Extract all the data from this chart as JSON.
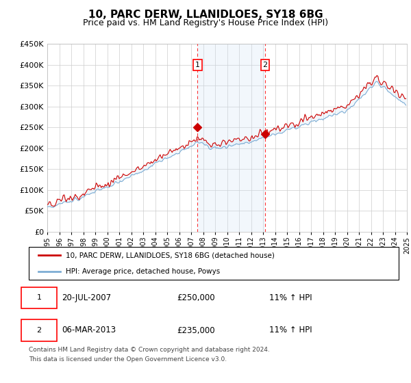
{
  "title": "10, PARC DERW, LLANIDLOES, SY18 6BG",
  "subtitle": "Price paid vs. HM Land Registry's House Price Index (HPI)",
  "legend_line1": "10, PARC DERW, LLANIDLOES, SY18 6BG (detached house)",
  "legend_line2": "HPI: Average price, detached house, Powys",
  "footnote1": "Contains HM Land Registry data © Crown copyright and database right 2024.",
  "footnote2": "This data is licensed under the Open Government Licence v3.0.",
  "sale1_date": "20-JUL-2007",
  "sale1_price": "£250,000",
  "sale1_hpi": "11% ↑ HPI",
  "sale2_date": "06-MAR-2013",
  "sale2_price": "£235,000",
  "sale2_hpi": "11% ↑ HPI",
  "sale1_year": 2007.54,
  "sale1_value": 250000,
  "sale2_year": 2013.17,
  "sale2_value": 235000,
  "ylim": [
    0,
    450000
  ],
  "yticks": [
    0,
    50000,
    100000,
    150000,
    200000,
    250000,
    300000,
    350000,
    400000,
    450000
  ],
  "xlim_start": 1995,
  "xlim_end": 2025,
  "red_color": "#cc0000",
  "blue_color": "#7dadd4",
  "shade_color": "#cce0f5",
  "grid_color": "#cccccc",
  "background_color": "#ffffff"
}
